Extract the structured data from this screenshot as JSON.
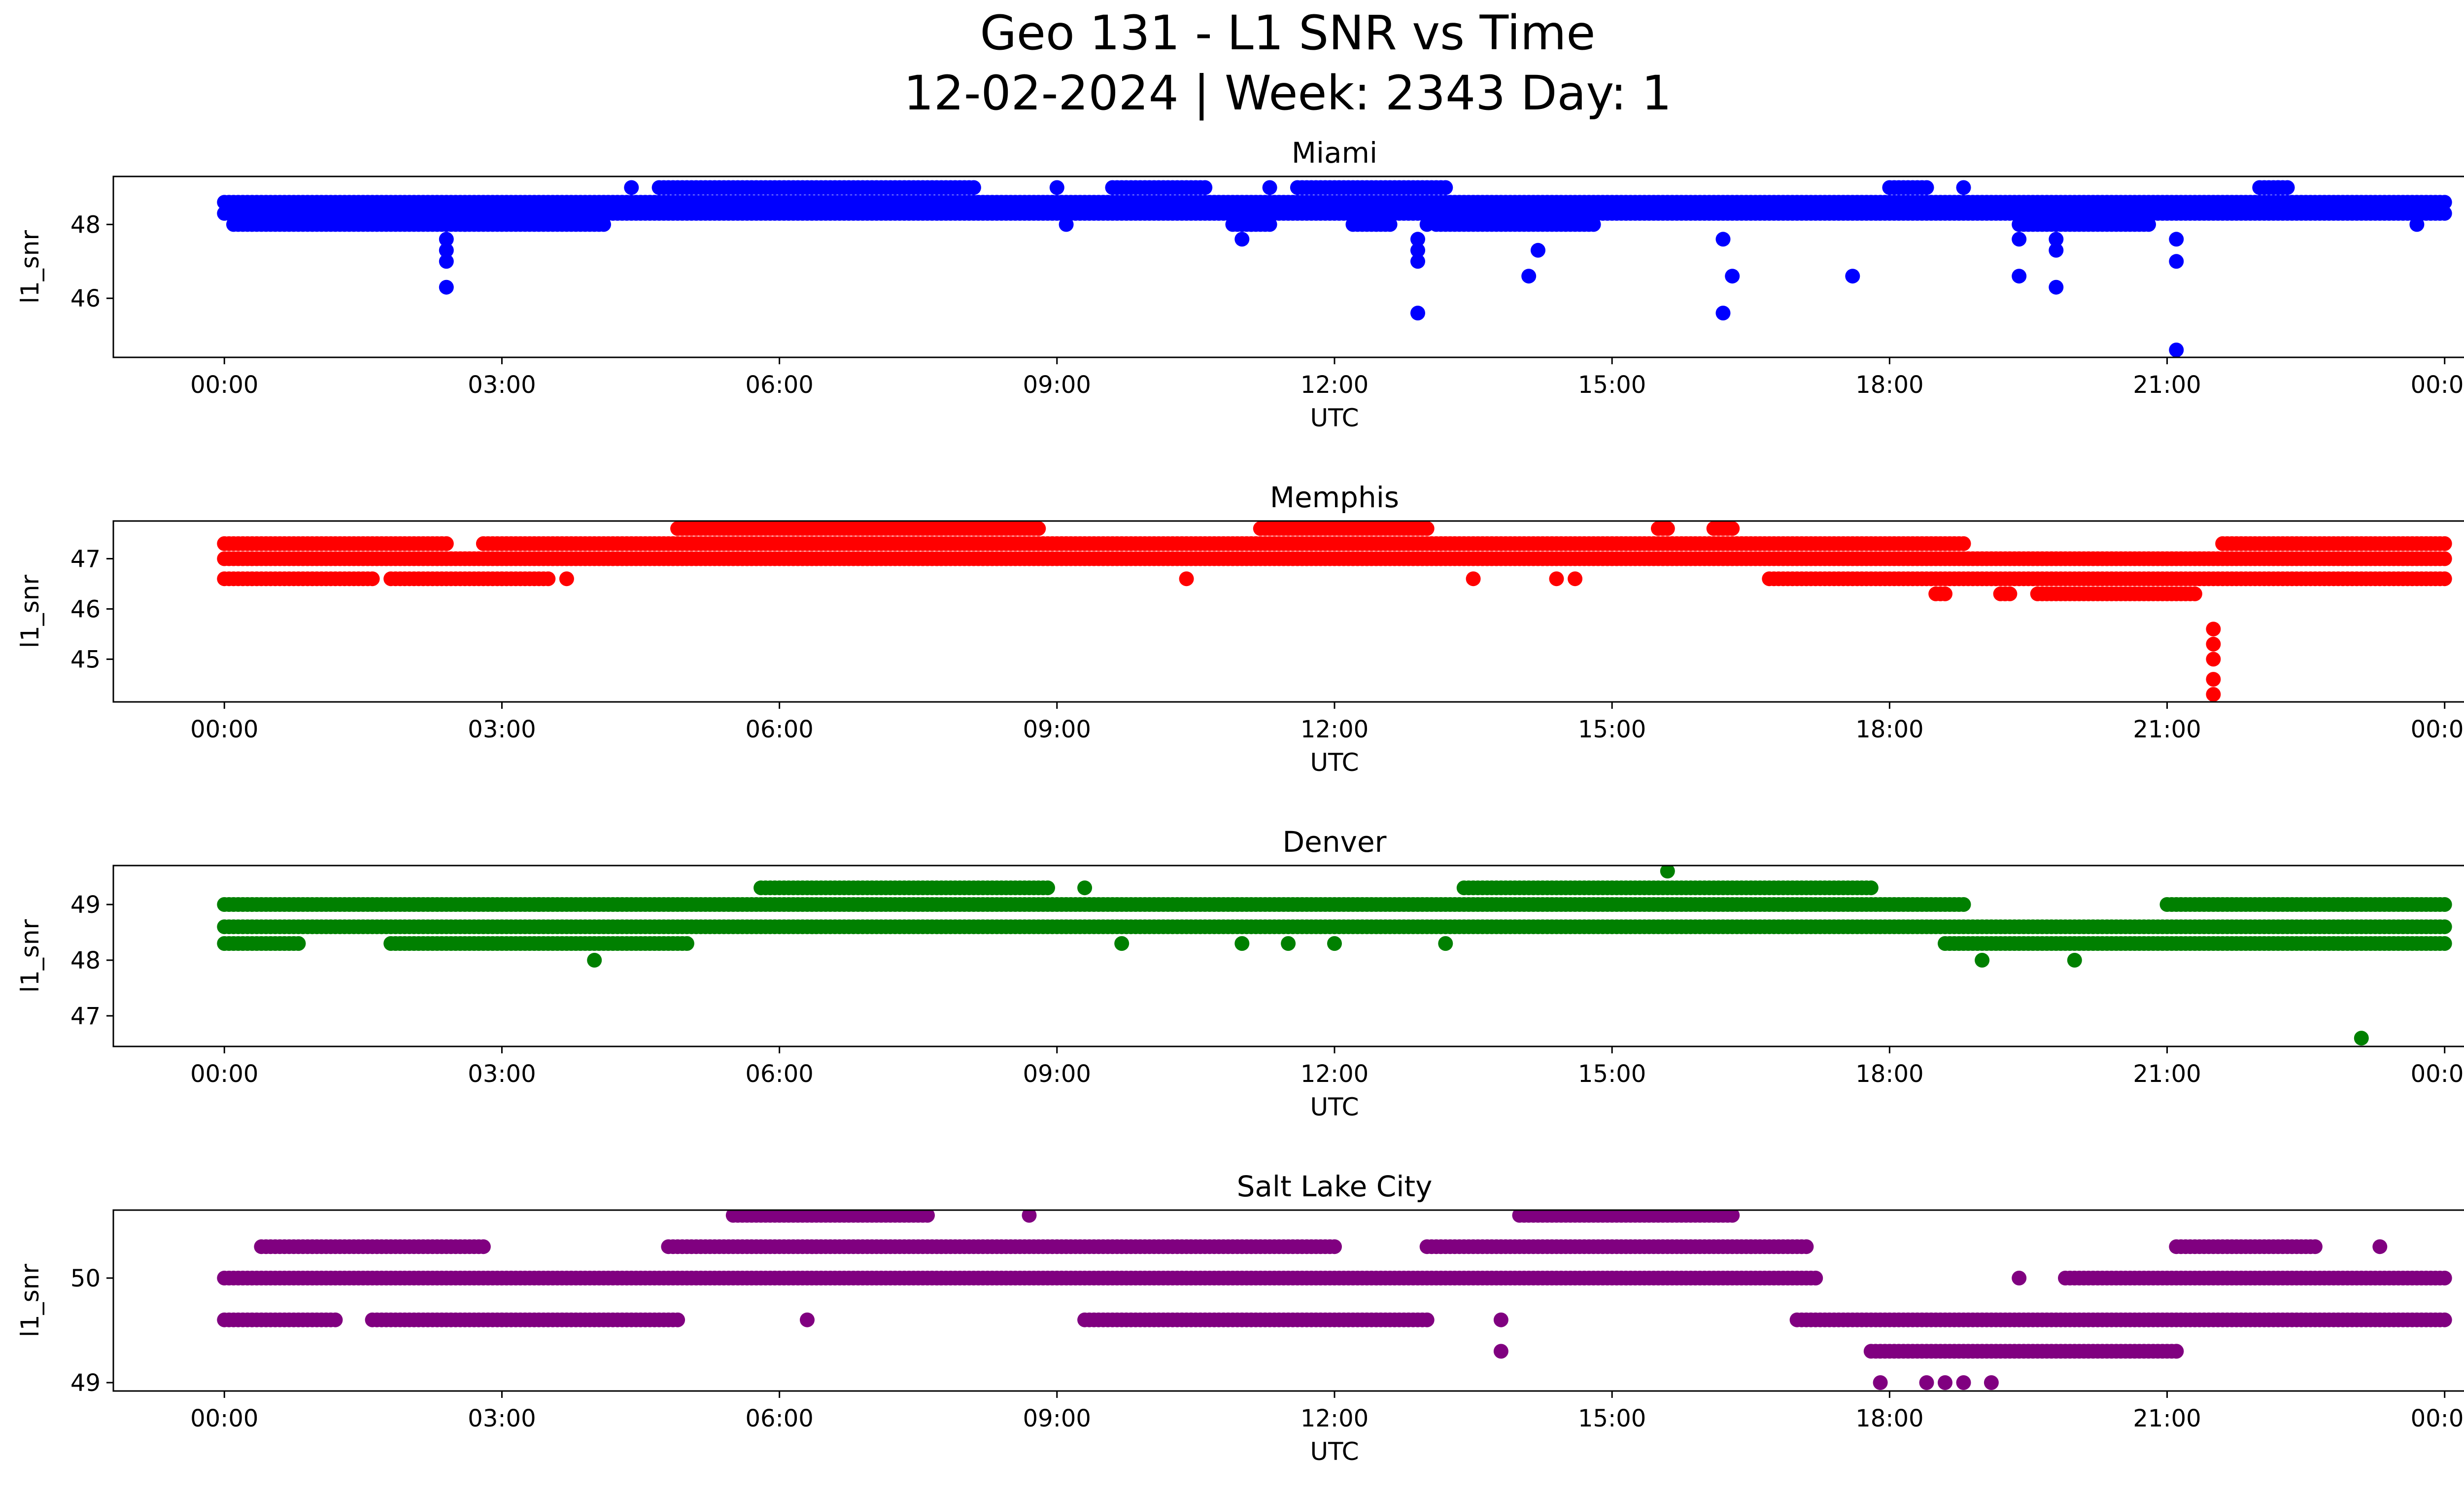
{
  "figure": {
    "title_line1": "Geo 131 - L1 SNR vs Time",
    "title_line2": "12-02-2024 | Week: 2343 Day: 1"
  },
  "chart_data": [
    {
      "type": "scatter",
      "title": "Miami",
      "xlabel": "UTC",
      "ylabel": "l1_snr",
      "color": "#0000ff",
      "xlim": [
        -1.2,
        25.2
      ],
      "ylim": [
        44.4,
        49.3
      ],
      "xticks": [
        0,
        3,
        6,
        9,
        12,
        15,
        18,
        21,
        24
      ],
      "xtick_labels": [
        "00:00",
        "03:00",
        "06:00",
        "09:00",
        "12:00",
        "15:00",
        "18:00",
        "21:00",
        "00:00"
      ],
      "yticks": [
        46,
        48
      ],
      "bands": [
        {
          "y": 48.6,
          "ranges": [
            [
              0,
              24
            ]
          ]
        },
        {
          "y": 48.3,
          "ranges": [
            [
              0,
              24
            ]
          ]
        },
        {
          "y": 48.0,
          "ranges": [
            [
              0.1,
              2.6
            ],
            [
              2.6,
              4.1
            ],
            [
              10.9,
              11.3
            ],
            [
              12.2,
              12.6
            ],
            [
              13.1,
              14.8
            ],
            [
              19.4,
              20.8
            ]
          ]
        },
        {
          "y": 49.0,
          "ranges": [
            [
              4.7,
              8.1
            ],
            [
              9.6,
              10.6
            ],
            [
              11.6,
              13.2
            ],
            [
              18.0,
              18.4
            ],
            [
              22.0,
              22.3
            ]
          ]
        }
      ],
      "points": [
        {
          "x": 2.4,
          "y": 47.6
        },
        {
          "x": 2.4,
          "y": 47.3
        },
        {
          "x": 2.4,
          "y": 47.0
        },
        {
          "x": 2.4,
          "y": 46.3
        },
        {
          "x": 4.4,
          "y": 49.0
        },
        {
          "x": 9.0,
          "y": 49.0
        },
        {
          "x": 9.1,
          "y": 48.0
        },
        {
          "x": 11.0,
          "y": 47.6
        },
        {
          "x": 11.1,
          "y": 48.0
        },
        {
          "x": 11.3,
          "y": 49.0
        },
        {
          "x": 12.9,
          "y": 47.6
        },
        {
          "x": 12.9,
          "y": 47.3
        },
        {
          "x": 12.9,
          "y": 47.0
        },
        {
          "x": 12.9,
          "y": 45.6
        },
        {
          "x": 13.0,
          "y": 48.0
        },
        {
          "x": 14.1,
          "y": 46.6
        },
        {
          "x": 14.2,
          "y": 47.3
        },
        {
          "x": 16.2,
          "y": 47.6
        },
        {
          "x": 16.2,
          "y": 45.6
        },
        {
          "x": 16.3,
          "y": 46.6
        },
        {
          "x": 17.6,
          "y": 46.6
        },
        {
          "x": 18.8,
          "y": 49.0
        },
        {
          "x": 19.4,
          "y": 47.6
        },
        {
          "x": 19.4,
          "y": 46.6
        },
        {
          "x": 19.8,
          "y": 47.6
        },
        {
          "x": 19.8,
          "y": 47.3
        },
        {
          "x": 19.8,
          "y": 46.3
        },
        {
          "x": 21.1,
          "y": 47.6
        },
        {
          "x": 21.1,
          "y": 47.0
        },
        {
          "x": 21.1,
          "y": 44.6
        },
        {
          "x": 22.2,
          "y": 49.0
        },
        {
          "x": 23.7,
          "y": 48.0
        }
      ]
    },
    {
      "type": "scatter",
      "title": "Memphis",
      "xlabel": "UTC",
      "ylabel": "l1_snr",
      "color": "#ff0000",
      "xlim": [
        -1.2,
        25.2
      ],
      "ylim": [
        44.15,
        47.75
      ],
      "xticks": [
        0,
        3,
        6,
        9,
        12,
        15,
        18,
        21,
        24
      ],
      "xtick_labels": [
        "00:00",
        "03:00",
        "06:00",
        "09:00",
        "12:00",
        "15:00",
        "18:00",
        "21:00",
        "00:00"
      ],
      "yticks": [
        45,
        46,
        47
      ],
      "bands": [
        {
          "y": 47.0,
          "ranges": [
            [
              0,
              24
            ]
          ]
        },
        {
          "y": 47.3,
          "ranges": [
            [
              0,
              2.4
            ],
            [
              2.8,
              18.8
            ],
            [
              21.6,
              24
            ]
          ]
        },
        {
          "y": 46.6,
          "ranges": [
            [
              0,
              1.6
            ],
            [
              1.8,
              3.5
            ],
            [
              16.7,
              24
            ]
          ]
        },
        {
          "y": 47.6,
          "ranges": [
            [
              4.9,
              8.8
            ],
            [
              11.2,
              13.0
            ],
            [
              15.5,
              15.6
            ],
            [
              16.1,
              16.3
            ]
          ]
        },
        {
          "y": 46.3,
          "ranges": [
            [
              18.5,
              18.6
            ],
            [
              19.2,
              19.3
            ],
            [
              19.6,
              21.3
            ]
          ]
        }
      ],
      "points": [
        {
          "x": 3.7,
          "y": 46.6
        },
        {
          "x": 10.4,
          "y": 46.6
        },
        {
          "x": 13.5,
          "y": 46.6
        },
        {
          "x": 14.4,
          "y": 46.6
        },
        {
          "x": 14.6,
          "y": 46.6
        },
        {
          "x": 21.5,
          "y": 45.6
        },
        {
          "x": 21.5,
          "y": 45.3
        },
        {
          "x": 21.5,
          "y": 45.0
        },
        {
          "x": 21.5,
          "y": 44.6
        },
        {
          "x": 21.5,
          "y": 44.3
        }
      ]
    },
    {
      "type": "scatter",
      "title": "Denver",
      "xlabel": "UTC",
      "ylabel": "l1_snr",
      "color": "#008000",
      "xlim": [
        -1.2,
        25.2
      ],
      "ylim": [
        46.45,
        49.7
      ],
      "xticks": [
        0,
        3,
        6,
        9,
        12,
        15,
        18,
        21,
        24
      ],
      "xtick_labels": [
        "00:00",
        "03:00",
        "06:00",
        "09:00",
        "12:00",
        "15:00",
        "18:00",
        "21:00",
        "00:00"
      ],
      "yticks": [
        47,
        48,
        49
      ],
      "bands": [
        {
          "y": 48.6,
          "ranges": [
            [
              0,
              24
            ]
          ]
        },
        {
          "y": 49.0,
          "ranges": [
            [
              0,
              3.4
            ],
            [
              3.4,
              18.8
            ],
            [
              21.0,
              24
            ]
          ]
        },
        {
          "y": 48.3,
          "ranges": [
            [
              0,
              0.8
            ],
            [
              1.8,
              5.0
            ],
            [
              18.6,
              24
            ]
          ]
        },
        {
          "y": 49.3,
          "ranges": [
            [
              5.8,
              8.9
            ],
            [
              13.4,
              17.8
            ]
          ]
        }
      ],
      "points": [
        {
          "x": 4.0,
          "y": 48.0
        },
        {
          "x": 9.3,
          "y": 49.3
        },
        {
          "x": 9.7,
          "y": 48.3
        },
        {
          "x": 11.0,
          "y": 48.3
        },
        {
          "x": 11.5,
          "y": 48.3
        },
        {
          "x": 12.0,
          "y": 48.3
        },
        {
          "x": 13.2,
          "y": 48.3
        },
        {
          "x": 15.6,
          "y": 49.6
        },
        {
          "x": 19.0,
          "y": 48.0
        },
        {
          "x": 20.0,
          "y": 48.0
        },
        {
          "x": 23.1,
          "y": 46.6
        }
      ]
    },
    {
      "type": "scatter",
      "title": "Salt Lake City",
      "xlabel": "UTC",
      "ylabel": "l1_snr",
      "color": "#800080",
      "xlim": [
        -1.2,
        25.2
      ],
      "ylim": [
        48.92,
        50.65
      ],
      "xticks": [
        0,
        3,
        6,
        9,
        12,
        15,
        18,
        21,
        24
      ],
      "xtick_labels": [
        "00:00",
        "03:00",
        "06:00",
        "09:00",
        "12:00",
        "15:00",
        "18:00",
        "21:00",
        "00:00"
      ],
      "yticks": [
        49,
        50
      ],
      "bands": [
        {
          "y": 50.0,
          "ranges": [
            [
              0,
              17.2
            ],
            [
              19.9,
              24
            ]
          ]
        },
        {
          "y": 50.3,
          "ranges": [
            [
              0.4,
              2.8
            ],
            [
              4.8,
              12.0
            ],
            [
              13.0,
              17.1
            ],
            [
              21.1,
              22.6
            ]
          ]
        },
        {
          "y": 49.6,
          "ranges": [
            [
              0,
              1.2
            ],
            [
              1.6,
              4.9
            ],
            [
              9.3,
              13.0
            ],
            [
              17.0,
              24
            ]
          ]
        },
        {
          "y": 50.6,
          "ranges": [
            [
              5.5,
              7.6
            ],
            [
              14.0,
              16.3
            ]
          ]
        },
        {
          "y": 49.3,
          "ranges": [
            [
              17.8,
              21.1
            ]
          ]
        }
      ],
      "points": [
        {
          "x": 6.3,
          "y": 49.6
        },
        {
          "x": 8.7,
          "y": 50.6
        },
        {
          "x": 13.8,
          "y": 49.6
        },
        {
          "x": 13.8,
          "y": 49.3
        },
        {
          "x": 17.9,
          "y": 49.0
        },
        {
          "x": 18.4,
          "y": 49.0
        },
        {
          "x": 18.6,
          "y": 49.0
        },
        {
          "x": 18.8,
          "y": 49.0
        },
        {
          "x": 19.1,
          "y": 49.0
        },
        {
          "x": 19.4,
          "y": 50.0
        },
        {
          "x": 21.1,
          "y": 49.3
        },
        {
          "x": 23.3,
          "y": 50.3
        }
      ]
    }
  ]
}
